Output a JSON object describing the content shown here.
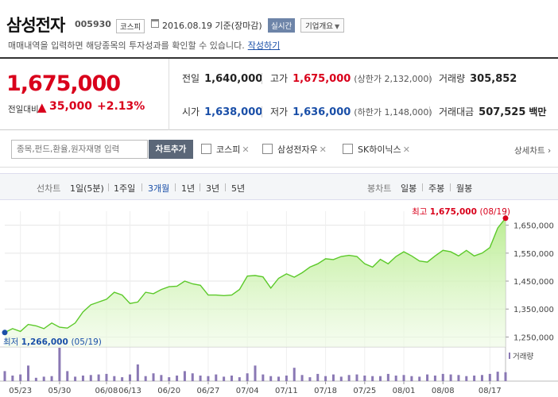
{
  "header": {
    "title": "삼성전자",
    "code": "005930",
    "market": "코스피",
    "date": "2016.08.19 기준(장마감)",
    "live_label": "실시간",
    "overview_label": "기업개요",
    "notice": "매매내역을 입력하면 해당종목의 투자성과를 확인할 수 있습니다.",
    "notice_link": "작성하기"
  },
  "price": {
    "current": "1,675,000",
    "change_label": "전일대비",
    "change_symbol": "▲",
    "change": "35,000",
    "change_pct": "+2.13%"
  },
  "stats": {
    "prev_close": {
      "label": "전일",
      "value": "1,640,000"
    },
    "high": {
      "label": "고가",
      "value": "1,675,000",
      "sub": "(상한가 2,132,000)"
    },
    "volume": {
      "label": "거래량",
      "value": "305,852"
    },
    "open": {
      "label": "시가",
      "value": "1,638,000"
    },
    "low": {
      "label": "저가",
      "value": "1,636,000",
      "sub": "(하한가 1,148,000)"
    },
    "amount": {
      "label": "거래대금",
      "value": "507,525",
      "unit": "백만"
    }
  },
  "compare": {
    "placeholder": "종목,펀드,환율,원자재명 입력",
    "add_button": "차트추가",
    "items": [
      "코스피",
      "삼성전자우",
      "SK하이닉스"
    ],
    "detail_link": "상세차트 ›"
  },
  "period": {
    "line_label": "선차트",
    "line_items": [
      "1일(5분)",
      "1주일",
      "3개월",
      "1년",
      "3년",
      "5년"
    ],
    "active_line": "3개월",
    "candle_label": "봉차트",
    "candle_items": [
      "일봉",
      "주봉",
      "월봉"
    ]
  },
  "colors": {
    "up": "#d9001b",
    "down": "#1a4fa8",
    "line": "#5cc92a",
    "volume": "#8a78b4"
  },
  "chart_data": {
    "type": "area",
    "x_tick_labels": [
      "05/23",
      "05/30",
      "06/08",
      "06/13",
      "06/20",
      "06/27",
      "07/04",
      "07/11",
      "07/18",
      "07/25",
      "08/01",
      "08/08",
      "08/17"
    ],
    "ylim": [
      1220000,
      1700000
    ],
    "y_ticks": [
      1250000,
      1350000,
      1450000,
      1550000,
      1650000
    ],
    "y_tick_labels": [
      "1,250,000",
      "1,350,000",
      "1,450,000",
      "1,550,000",
      "1,650,000"
    ],
    "x_dates": [
      "05/19",
      "05/20",
      "05/23",
      "05/24",
      "05/25",
      "05/26",
      "05/27",
      "05/30",
      "05/31",
      "06/01",
      "06/02",
      "06/03",
      "06/07",
      "06/08",
      "06/09",
      "06/10",
      "06/13",
      "06/14",
      "06/15",
      "06/16",
      "06/17",
      "06/20",
      "06/21",
      "06/22",
      "06/23",
      "06/24",
      "06/27",
      "06/28",
      "06/29",
      "06/30",
      "07/01",
      "07/04",
      "07/05",
      "07/06",
      "07/07",
      "07/08",
      "07/11",
      "07/12",
      "07/13",
      "07/14",
      "07/15",
      "07/18",
      "07/19",
      "07/20",
      "07/21",
      "07/22",
      "07/25",
      "07/26",
      "07/27",
      "07/28",
      "07/29",
      "08/01",
      "08/02",
      "08/03",
      "08/04",
      "08/05",
      "08/08",
      "08/09",
      "08/10",
      "08/11",
      "08/12",
      "08/16",
      "08/17",
      "08/18",
      "08/19"
    ],
    "close": [
      1266000,
      1280000,
      1270000,
      1295000,
      1290000,
      1280000,
      1300000,
      1285000,
      1282000,
      1300000,
      1340000,
      1365000,
      1375000,
      1385000,
      1410000,
      1400000,
      1370000,
      1375000,
      1410000,
      1405000,
      1420000,
      1430000,
      1432000,
      1450000,
      1440000,
      1435000,
      1400000,
      1400000,
      1398000,
      1400000,
      1420000,
      1468000,
      1470000,
      1465000,
      1425000,
      1460000,
      1476000,
      1464000,
      1480000,
      1500000,
      1512000,
      1530000,
      1527000,
      1538000,
      1542000,
      1538000,
      1512000,
      1500000,
      1528000,
      1512000,
      1538000,
      1555000,
      1540000,
      1522000,
      1518000,
      1540000,
      1560000,
      1555000,
      1540000,
      1560000,
      1540000,
      1550000,
      1570000,
      1640000,
      1675000
    ],
    "volume": [
      18,
      10,
      12,
      28,
      6,
      8,
      9,
      60,
      18,
      8,
      10,
      11,
      12,
      13,
      9,
      7,
      12,
      30,
      9,
      14,
      11,
      7,
      10,
      18,
      14,
      10,
      9,
      12,
      8,
      10,
      7,
      14,
      28,
      12,
      9,
      8,
      10,
      24,
      11,
      7,
      13,
      9,
      12,
      8,
      11,
      12,
      10,
      9,
      9,
      13,
      10,
      11,
      9,
      8,
      12,
      10,
      13,
      12,
      11,
      9,
      10,
      11,
      13,
      17,
      16
    ],
    "volume_label": "거래량",
    "high_annotation": {
      "label": "최고",
      "value": "1,675,000",
      "date": "(08/19)",
      "price": 1675000
    },
    "low_annotation": {
      "label": "최저",
      "value": "1,266,000",
      "date": "(05/19)",
      "price": 1266000
    }
  }
}
